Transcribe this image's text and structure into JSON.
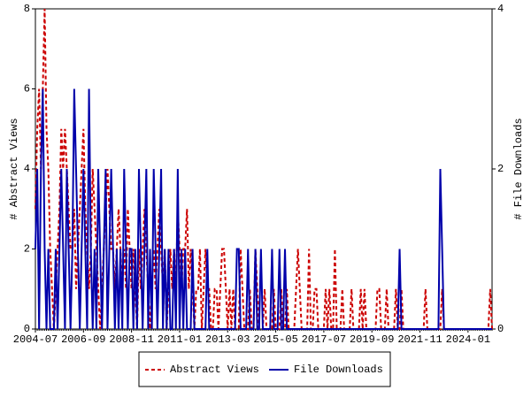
{
  "chart_data": {
    "type": "line",
    "categories": [
      "2004-07",
      null,
      null,
      null,
      null,
      null,
      null,
      null,
      null,
      null,
      null,
      null,
      null,
      null,
      null,
      null,
      null,
      null,
      null,
      null,
      null,
      null,
      null,
      null,
      null,
      null,
      "2006-09",
      null,
      null,
      null,
      null,
      null,
      null,
      null,
      null,
      null,
      null,
      null,
      null,
      null,
      null,
      null,
      null,
      null,
      null,
      null,
      null,
      null,
      null,
      null,
      null,
      null,
      "2008-11",
      null,
      null,
      null,
      null,
      null,
      null,
      null,
      null,
      null,
      null,
      null,
      null,
      null,
      null,
      null,
      null,
      null,
      null,
      null,
      null,
      null,
      null,
      null,
      null,
      null,
      "2011-01",
      null,
      null,
      null,
      null,
      null,
      null,
      null,
      null,
      null,
      null,
      null,
      null,
      null,
      null,
      null,
      null,
      null,
      null,
      null,
      null,
      null,
      null,
      null,
      null,
      null,
      "2013-03",
      null,
      null,
      null,
      null,
      null,
      null,
      null,
      null,
      null,
      null,
      null,
      null,
      null,
      null,
      null,
      null,
      null,
      null,
      null,
      null,
      null,
      null,
      null,
      null,
      null,
      "2015-05",
      null,
      null,
      null,
      null,
      null,
      null,
      null,
      null,
      null,
      null,
      null,
      null,
      null,
      null,
      null,
      null,
      null,
      null,
      null,
      null,
      null,
      null,
      null,
      null,
      null,
      "2017-07",
      null,
      null,
      null,
      null,
      null,
      null,
      null,
      null,
      null,
      null,
      null,
      null,
      null,
      null,
      null,
      null,
      null,
      null,
      null,
      null,
      null,
      null,
      null,
      null,
      null,
      "2019-09",
      null,
      null,
      null,
      null,
      null,
      null,
      null,
      null,
      null,
      null,
      null,
      null,
      null,
      null,
      null,
      null,
      null,
      null,
      null,
      null,
      null,
      null,
      null,
      null,
      null,
      "2021-11",
      null,
      null,
      null,
      null,
      null,
      null,
      null,
      null,
      null,
      null,
      null,
      null,
      null,
      null,
      null,
      null,
      null,
      null,
      null,
      null,
      null,
      null,
      null,
      null,
      null,
      "2024-01",
      null,
      null,
      null,
      null,
      null,
      null,
      null,
      null,
      null,
      null,
      null,
      null,
      null
    ],
    "series": [
      {
        "name": "Abstract Views",
        "color": "#cc0000",
        "dash": true,
        "values": [
          3,
          5,
          6,
          4,
          6,
          8,
          5,
          4,
          2,
          1,
          0,
          1,
          2,
          3,
          5,
          4,
          5,
          4,
          3,
          2,
          2,
          3,
          1,
          2,
          3,
          4,
          5,
          3,
          2,
          1,
          2,
          4,
          3,
          2,
          1,
          0,
          1,
          2,
          3,
          4,
          3,
          2,
          2,
          1,
          2,
          3,
          2,
          1,
          2,
          1,
          3,
          2,
          1,
          2,
          1,
          0,
          2,
          1,
          2,
          3,
          2,
          1,
          0,
          1,
          2,
          1,
          2,
          3,
          2,
          1,
          2,
          0,
          1,
          2,
          1,
          2,
          1,
          3,
          2,
          1,
          2,
          2,
          3,
          1,
          2,
          1,
          0,
          1,
          1,
          2,
          0,
          1,
          2,
          1,
          1,
          0,
          0,
          1,
          1,
          0,
          1,
          2,
          2,
          1,
          0,
          1,
          0,
          1,
          0,
          0,
          0,
          2,
          1,
          0,
          0,
          0,
          1,
          0,
          0,
          2,
          1,
          0,
          0,
          0,
          1,
          0,
          0,
          0,
          0,
          1,
          0,
          0,
          0,
          1,
          0,
          0,
          1,
          0,
          0,
          0,
          0,
          1,
          2,
          1,
          0,
          0,
          0,
          0,
          2,
          0,
          0,
          1,
          1,
          0,
          0,
          0,
          0,
          1,
          0,
          1,
          0,
          0,
          2,
          0,
          0,
          0,
          1,
          0,
          0,
          0,
          0,
          1,
          0,
          0,
          0,
          0,
          1,
          0,
          1,
          0,
          0,
          0,
          0,
          0,
          0,
          1,
          1,
          0,
          0,
          0,
          1,
          0,
          0,
          0,
          0,
          1,
          0,
          0,
          1,
          0,
          0,
          0,
          0,
          0,
          0,
          0,
          0,
          0,
          0,
          0,
          0,
          1,
          0,
          0,
          0,
          0,
          0,
          0,
          0,
          0,
          1,
          0,
          0,
          0,
          0,
          0,
          0,
          0,
          0,
          0,
          0,
          0,
          0,
          0,
          0,
          0,
          0,
          0,
          0,
          0,
          0,
          0,
          0,
          0,
          0,
          0,
          1,
          0
        ]
      },
      {
        "name": "File Downloads",
        "color": "#0000aa",
        "dash": false,
        "axis": "y2",
        "values": [
          1,
          2,
          0,
          2,
          3,
          1,
          0,
          1,
          0,
          0,
          0,
          1,
          0,
          1,
          2,
          1,
          0,
          2,
          1,
          0,
          1,
          3,
          2,
          1,
          0,
          1,
          2,
          1,
          0,
          3,
          1,
          0,
          1,
          0,
          2,
          1,
          0,
          1,
          2,
          0,
          1,
          2,
          1,
          0,
          1,
          0,
          1,
          0,
          2,
          1,
          0,
          1,
          1,
          0,
          1,
          0,
          2,
          1,
          0,
          1,
          2,
          0,
          1,
          0,
          2,
          1,
          0,
          1,
          2,
          0,
          1,
          0,
          1,
          0,
          0,
          1,
          0,
          2,
          0,
          1,
          0,
          1,
          0,
          0,
          0,
          1,
          0,
          0,
          0,
          0,
          0,
          0,
          0,
          1,
          0,
          0,
          0,
          0,
          0,
          0,
          0,
          0,
          0,
          0,
          0,
          0,
          0,
          0,
          0,
          1,
          1,
          0,
          0,
          0,
          0,
          1,
          0,
          0,
          0,
          1,
          0,
          0,
          1,
          0,
          0,
          0,
          0,
          0,
          1,
          0,
          0,
          0,
          1,
          0,
          0,
          1,
          0,
          0,
          0,
          0,
          0,
          0,
          0,
          0,
          0,
          0,
          0,
          0,
          0,
          0,
          0,
          0,
          0,
          0,
          0,
          0,
          0,
          0,
          0,
          0,
          0,
          0,
          0,
          0,
          0,
          0,
          0,
          0,
          0,
          0,
          0,
          0,
          0,
          0,
          0,
          0,
          0,
          0,
          0,
          0,
          0,
          0,
          0,
          0,
          0,
          0,
          0,
          0,
          0,
          0,
          0,
          0,
          0,
          0,
          0,
          0,
          0,
          1,
          0,
          0,
          0,
          0,
          0,
          0,
          0,
          0,
          0,
          0,
          0,
          0,
          0,
          0,
          0,
          0,
          0,
          0,
          0,
          0,
          0,
          2,
          1,
          0,
          0,
          0,
          0,
          0,
          0,
          0,
          0,
          0,
          0,
          0,
          0,
          0,
          0,
          0,
          0,
          0,
          0,
          0,
          0,
          0,
          0,
          0,
          0,
          0,
          0,
          0
        ]
      }
    ],
    "ylabel": "# Abstract Views",
    "y2label": "# File Downloads",
    "ylim": [
      0,
      8
    ],
    "yticks": [
      0,
      2,
      4,
      6,
      8
    ],
    "y2lim": [
      0,
      4
    ],
    "y2ticks": [
      0,
      2,
      4
    ],
    "legend": "bottom"
  }
}
